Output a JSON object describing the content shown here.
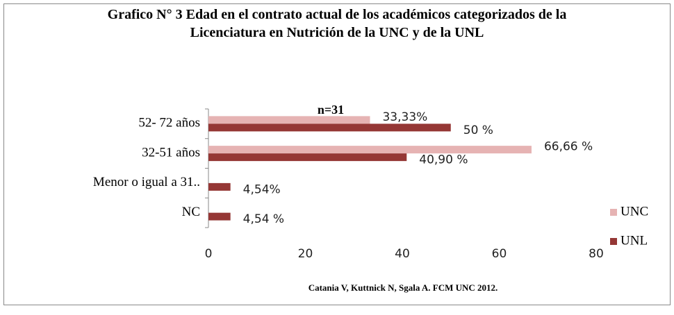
{
  "chart_data": {
    "type": "bar",
    "orientation": "horizontal",
    "title": "Grafico N° 3 Edad en el contrato actual de los académicos categorizados de la Licenciatura en Nutrición de la UNC y de la UNL",
    "annotation": "n=31",
    "source": "Catania V, Kuttnick N, Sgala A. FCM UNC 2012.",
    "categories": [
      "52- 72 años",
      "32-51 años",
      "Menor o igual a 31..",
      "NC"
    ],
    "series": [
      {
        "name": "UNC",
        "color": "#e6b3b3",
        "values": [
          33.33,
          66.66,
          null,
          null
        ],
        "value_labels": [
          "33,33%",
          "66,66 %",
          null,
          null
        ]
      },
      {
        "name": "UNL",
        "color": "#953735",
        "values": [
          50,
          40.9,
          4.54,
          4.54
        ],
        "value_labels": [
          "50 %",
          "40,90 %",
          "4,54%",
          "4,54 %"
        ]
      }
    ],
    "xlim": [
      0,
      80
    ],
    "xticks": [
      0,
      20,
      40,
      60,
      80
    ],
    "grid": false,
    "legend": "right"
  }
}
